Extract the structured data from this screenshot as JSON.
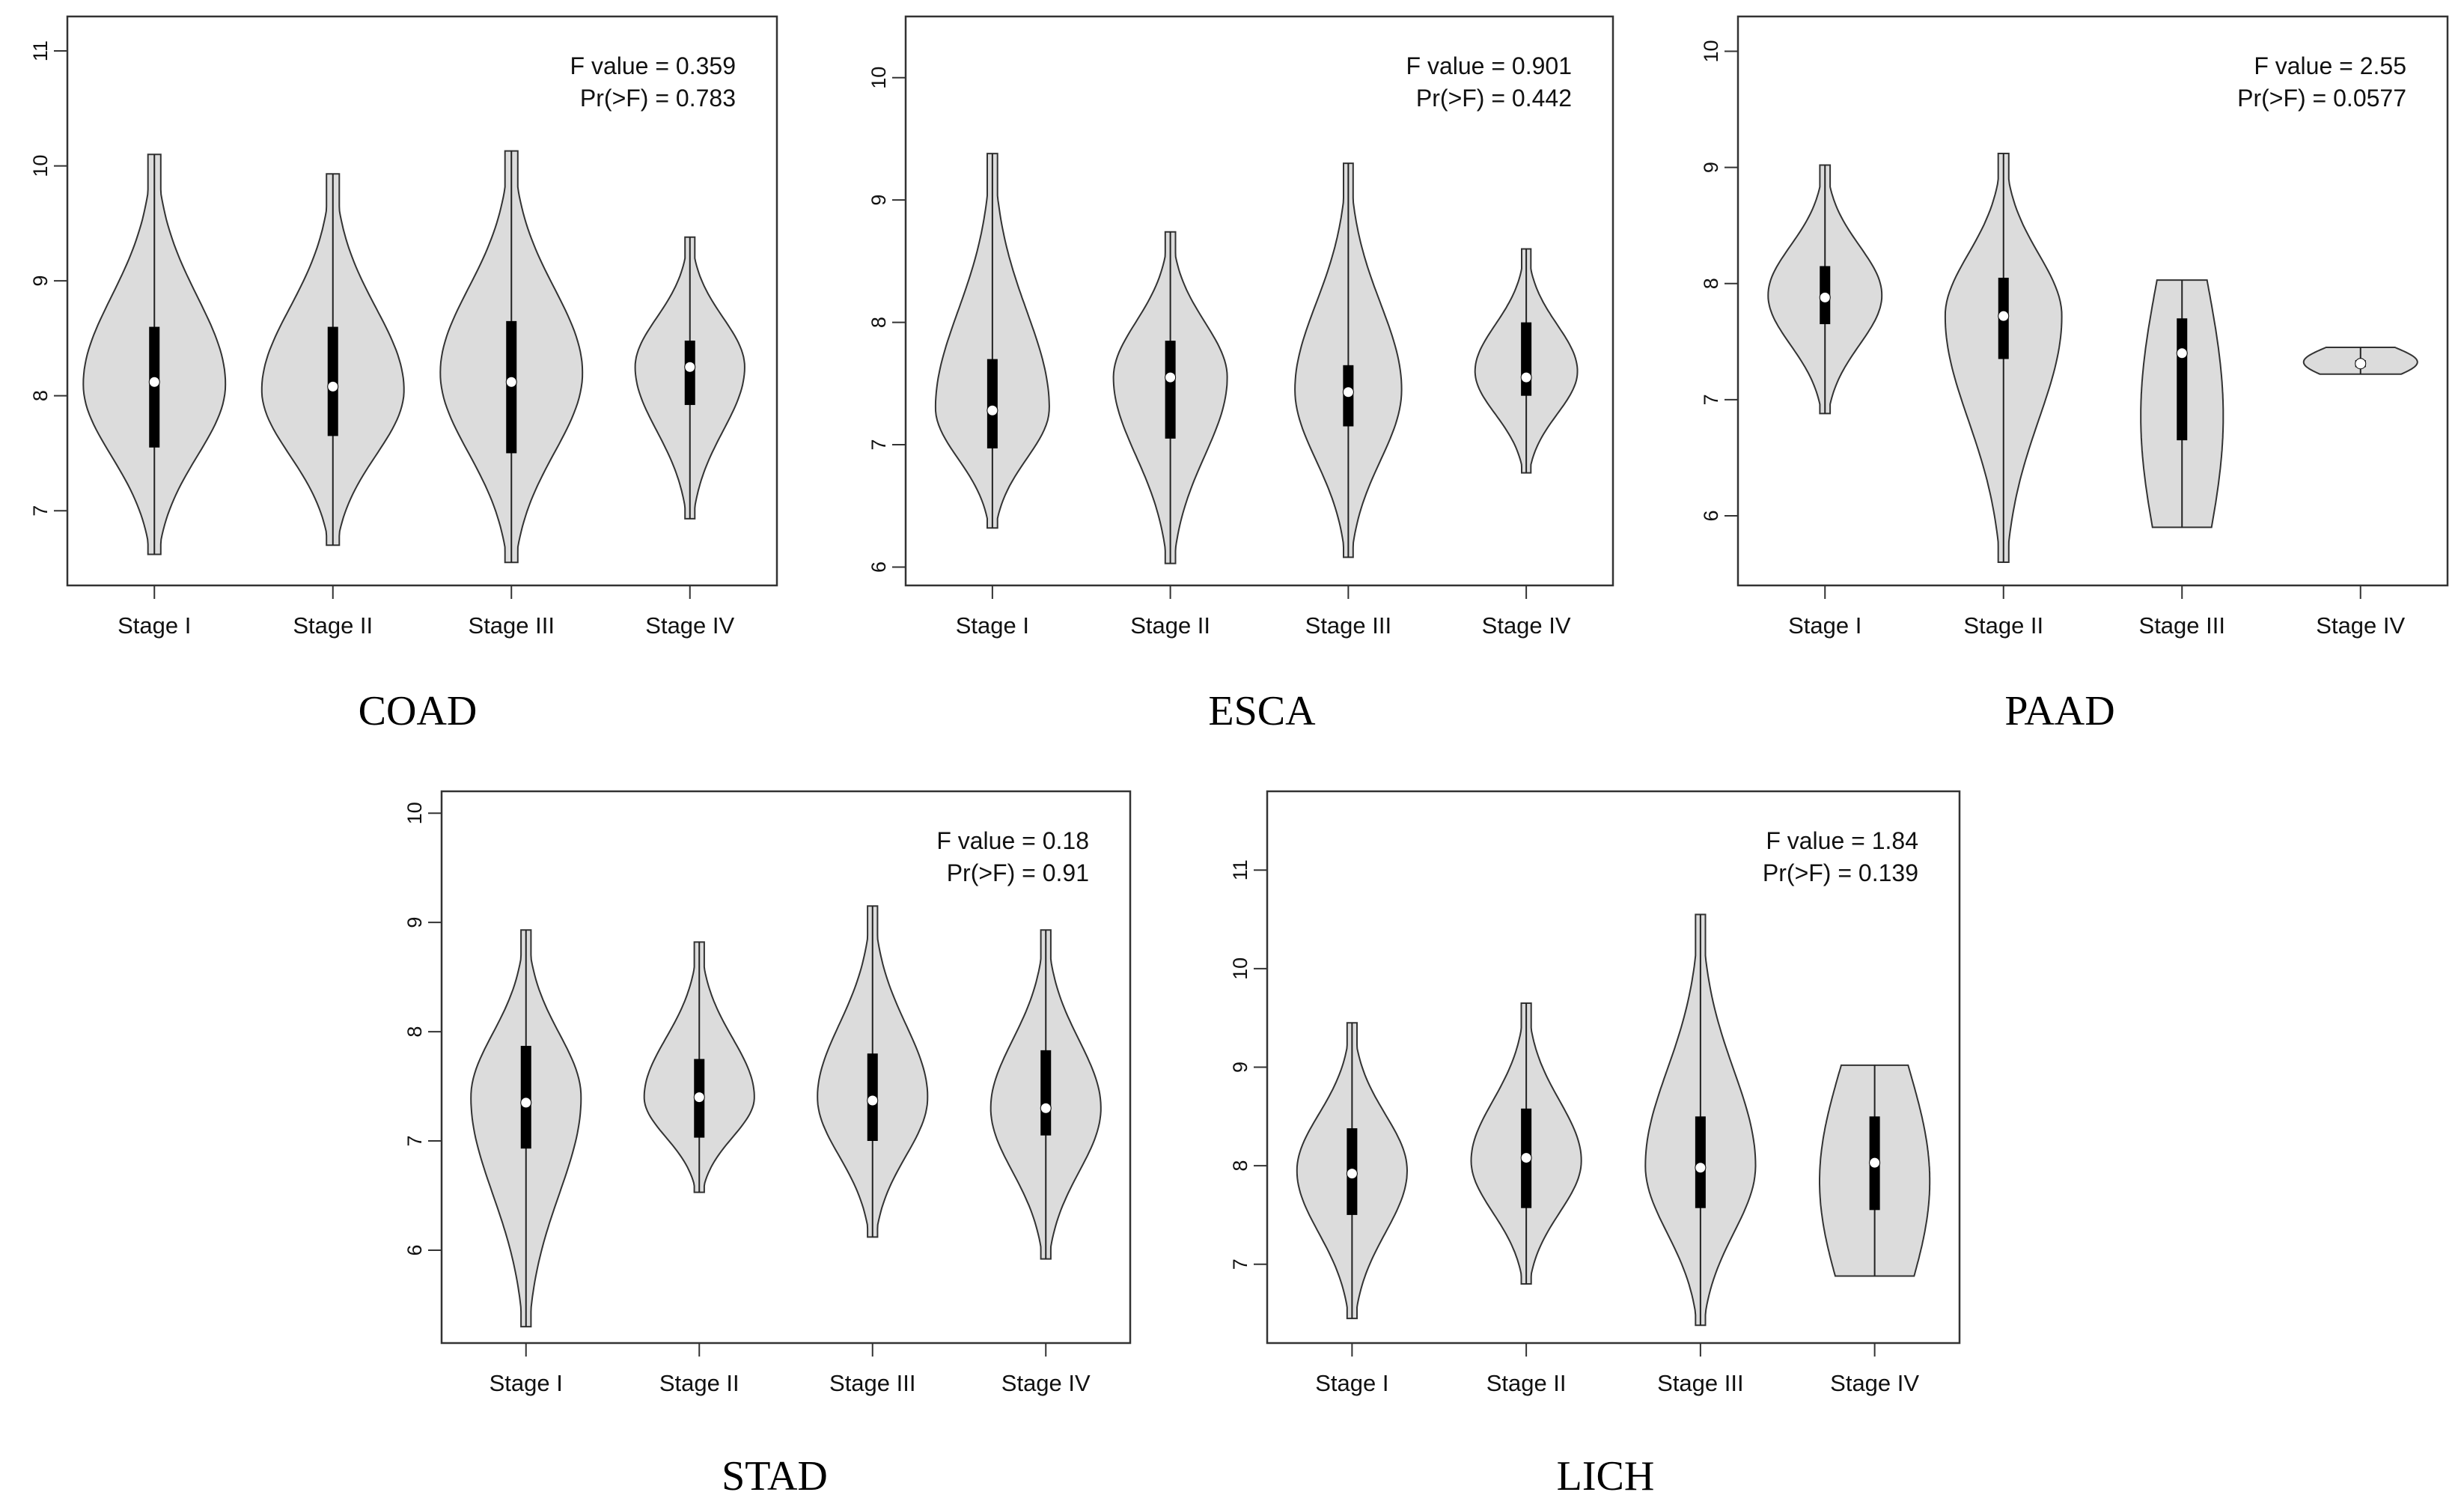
{
  "chart_data": [
    {
      "type": "violin",
      "title": "COAD",
      "annotation": {
        "f_value": "F value = 0.359",
        "p_value": "Pr(>F) = 0.783"
      },
      "ylim": [
        6.35,
        11.3
      ],
      "yticks": [
        "7",
        "8",
        "9",
        "10",
        "11"
      ],
      "categories": [
        "Stage I",
        "Stage II",
        "Stage III",
        "Stage IV"
      ],
      "series": [
        {
          "name": "Stage I",
          "min": 6.62,
          "max": 10.1,
          "q1": 7.55,
          "median": 8.12,
          "q3": 8.6,
          "mode": 8.1,
          "width": 1.0,
          "style": "bell"
        },
        {
          "name": "Stage II",
          "min": 6.7,
          "max": 9.93,
          "q1": 7.65,
          "median": 8.08,
          "q3": 8.6,
          "mode": 8.05,
          "width": 1.0,
          "style": "bell"
        },
        {
          "name": "Stage III",
          "min": 6.55,
          "max": 10.13,
          "q1": 7.5,
          "median": 8.12,
          "q3": 8.65,
          "mode": 8.2,
          "width": 1.0,
          "style": "bell"
        },
        {
          "name": "Stage IV",
          "min": 6.93,
          "max": 9.38,
          "q1": 7.92,
          "median": 8.25,
          "q3": 8.48,
          "mode": 8.25,
          "width": 0.77,
          "style": "bell"
        }
      ]
    },
    {
      "type": "violin",
      "title": "ESCA",
      "annotation": {
        "f_value": "F value = 0.901",
        "p_value": "Pr(>F) = 0.442"
      },
      "ylim": [
        5.85,
        10.5
      ],
      "yticks": [
        "6",
        "7",
        "8",
        "9",
        "10"
      ],
      "categories": [
        "Stage I",
        "Stage II",
        "Stage III",
        "Stage IV"
      ],
      "series": [
        {
          "name": "Stage I",
          "min": 6.32,
          "max": 9.38,
          "q1": 6.97,
          "median": 7.28,
          "q3": 7.7,
          "mode": 7.3,
          "width": 0.8,
          "style": "bell"
        },
        {
          "name": "Stage II",
          "min": 6.03,
          "max": 8.74,
          "q1": 7.05,
          "median": 7.55,
          "q3": 7.85,
          "mode": 7.55,
          "width": 0.8,
          "style": "bell"
        },
        {
          "name": "Stage III",
          "min": 6.08,
          "max": 9.3,
          "q1": 7.15,
          "median": 7.43,
          "q3": 7.65,
          "mode": 7.45,
          "width": 0.75,
          "style": "bell"
        },
        {
          "name": "Stage IV",
          "min": 6.77,
          "max": 8.6,
          "q1": 7.4,
          "median": 7.55,
          "q3": 8.0,
          "mode": 7.6,
          "width": 0.72,
          "style": "bell"
        }
      ]
    },
    {
      "type": "violin",
      "title": "PAAD",
      "annotation": {
        "f_value": "F value = 2.55",
        "p_value": "Pr(>F) = 0.0577"
      },
      "ylim": [
        5.4,
        10.3
      ],
      "yticks": [
        "6",
        "7",
        "8",
        "9",
        "10"
      ],
      "categories": [
        "Stage I",
        "Stage II",
        "Stage III",
        "Stage IV"
      ],
      "series": [
        {
          "name": "Stage I",
          "min": 6.88,
          "max": 9.02,
          "q1": 7.65,
          "median": 7.88,
          "q3": 8.15,
          "mode": 7.9,
          "width": 0.8,
          "style": "bell"
        },
        {
          "name": "Stage II",
          "min": 5.6,
          "max": 9.12,
          "q1": 7.35,
          "median": 7.72,
          "q3": 8.05,
          "mode": 7.72,
          "width": 0.82,
          "style": "bell"
        },
        {
          "name": "Stage III",
          "min": 5.9,
          "max": 8.03,
          "q1": 6.65,
          "median": 7.4,
          "q3": 7.7,
          "mode": 7.4,
          "width": 0.58,
          "style": "flat"
        },
        {
          "name": "Stage IV",
          "min": 7.22,
          "max": 7.45,
          "q1": 7.28,
          "median": 7.31,
          "q3": 7.34,
          "mode": 7.3,
          "width": 0.8,
          "style": "cap"
        }
      ]
    },
    {
      "type": "violin",
      "title": "STAD",
      "annotation": {
        "f_value": "F value = 0.18",
        "p_value": "Pr(>F) = 0.91"
      },
      "ylim": [
        5.15,
        10.2
      ],
      "yticks": [
        "6",
        "7",
        "8",
        "9",
        "10"
      ],
      "categories": [
        "Stage I",
        "Stage II",
        "Stage III",
        "Stage IV"
      ],
      "series": [
        {
          "name": "Stage I",
          "min": 5.3,
          "max": 8.93,
          "q1": 6.93,
          "median": 7.35,
          "q3": 7.87,
          "mode": 7.4,
          "width": 0.8,
          "style": "bell"
        },
        {
          "name": "Stage II",
          "min": 6.53,
          "max": 8.82,
          "q1": 7.03,
          "median": 7.4,
          "q3": 7.75,
          "mode": 7.4,
          "width": 0.8,
          "style": "bell"
        },
        {
          "name": "Stage III",
          "min": 6.12,
          "max": 9.15,
          "q1": 7.0,
          "median": 7.37,
          "q3": 7.8,
          "mode": 7.4,
          "width": 0.8,
          "style": "bell"
        },
        {
          "name": "Stage IV",
          "min": 5.92,
          "max": 8.93,
          "q1": 7.05,
          "median": 7.3,
          "q3": 7.83,
          "mode": 7.3,
          "width": 0.8,
          "style": "bell"
        }
      ]
    },
    {
      "type": "violin",
      "title": "LICH",
      "annotation": {
        "f_value": "F value = 1.84",
        "p_value": "Pr(>F) = 0.139"
      },
      "ylim": [
        6.2,
        11.8
      ],
      "yticks": [
        "7",
        "8",
        "9",
        "10",
        "11"
      ],
      "categories": [
        "Stage I",
        "Stage II",
        "Stage III",
        "Stage IV"
      ],
      "series": [
        {
          "name": "Stage I",
          "min": 6.45,
          "max": 9.45,
          "q1": 7.5,
          "median": 7.92,
          "q3": 8.38,
          "mode": 7.95,
          "width": 0.8,
          "style": "bell"
        },
        {
          "name": "Stage II",
          "min": 6.8,
          "max": 9.65,
          "q1": 7.57,
          "median": 8.08,
          "q3": 8.58,
          "mode": 8.05,
          "width": 0.8,
          "style": "bell"
        },
        {
          "name": "Stage III",
          "min": 6.38,
          "max": 10.55,
          "q1": 7.57,
          "median": 7.98,
          "q3": 8.5,
          "mode": 8.0,
          "width": 0.8,
          "style": "bell"
        },
        {
          "name": "Stage IV",
          "min": 6.88,
          "max": 9.02,
          "q1": 7.55,
          "median": 8.03,
          "q3": 8.5,
          "mode": 8.0,
          "width": 0.8,
          "style": "flat"
        }
      ]
    }
  ]
}
